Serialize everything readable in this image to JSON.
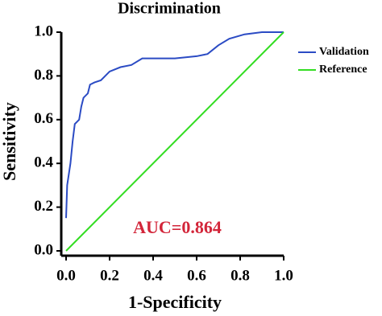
{
  "chart_data": {
    "type": "line",
    "title": "Discrimination",
    "x_label": "1-Specificity",
    "y_label": "Sensitivity",
    "annotation": "AUC=0.864",
    "series": [
      {
        "name": "Validation",
        "color": "#2b4bc4",
        "x": [
          0,
          0.005,
          0.02,
          0.03,
          0.04,
          0.06,
          0.07,
          0.08,
          0.1,
          0.11,
          0.13,
          0.16,
          0.2,
          0.25,
          0.3,
          0.35,
          0.5,
          0.6,
          0.65,
          0.7,
          0.75,
          0.82,
          0.9,
          1.0
        ],
        "values": [
          0.15,
          0.3,
          0.4,
          0.5,
          0.58,
          0.6,
          0.66,
          0.7,
          0.72,
          0.76,
          0.77,
          0.78,
          0.82,
          0.84,
          0.85,
          0.88,
          0.88,
          0.89,
          0.9,
          0.94,
          0.97,
          0.99,
          1.0,
          1.0
        ]
      },
      {
        "name": "Reference",
        "color": "#33dd22",
        "x": [
          0,
          1
        ],
        "values": [
          0,
          1
        ]
      }
    ],
    "xlim": [
      0,
      1
    ],
    "ylim": [
      0,
      1
    ],
    "xticks": [
      {
        "value": 0,
        "label": "0.0"
      },
      0.2,
      0.4,
      0.6,
      0.8,
      {
        "value": 1,
        "label": "1.0"
      }
    ],
    "yticks": [
      {
        "value": 0,
        "label": "0.0"
      },
      0.2,
      0.4,
      0.6,
      0.8,
      {
        "value": 1,
        "label": "1.0"
      }
    ],
    "annotation_color": "#d3263a"
  }
}
